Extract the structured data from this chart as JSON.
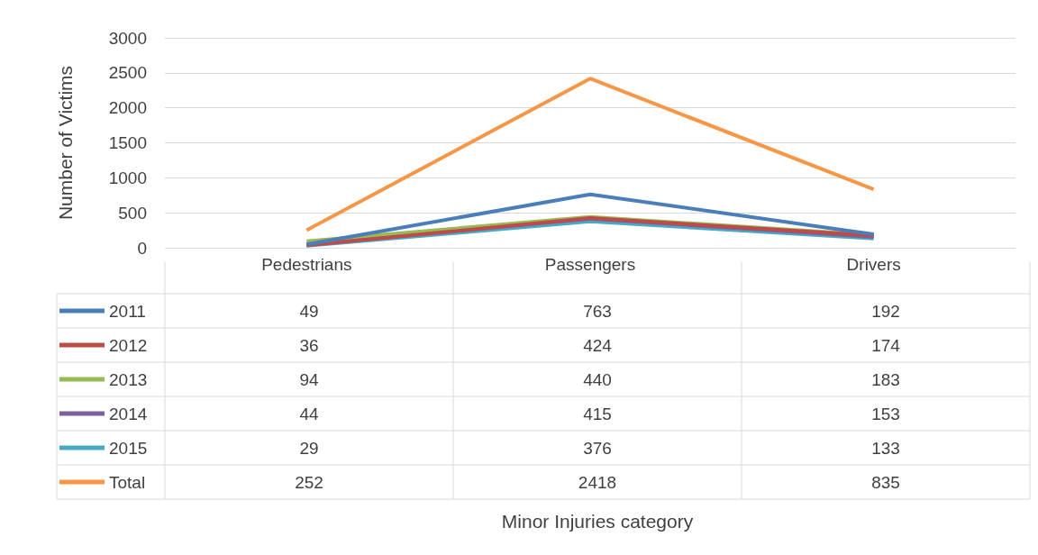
{
  "chart_data": {
    "type": "line",
    "annotations": [
      "Minor Injuries category"
    ],
    "ylabel": "Number of Victims",
    "categories": [
      "Pedestrians",
      "Passengers",
      "Drivers"
    ],
    "ylim": [
      0,
      3000
    ],
    "yticks": [
      0,
      500,
      1000,
      1500,
      2000,
      2500,
      3000
    ],
    "grid": "y",
    "legend": "bottom left",
    "data_labels": true,
    "marker": "none",
    "series": [
      {
        "name": "2011",
        "color": "#4a7ebb",
        "values": [
          49,
          763,
          192
        ]
      },
      {
        "name": "2012",
        "color": "#be4b48",
        "values": [
          36,
          424,
          174
        ]
      },
      {
        "name": "2013",
        "color": "#98b954",
        "values": [
          94,
          440,
          183
        ]
      },
      {
        "name": "2014",
        "color": "#7d60a0",
        "values": [
          44,
          415,
          153
        ]
      },
      {
        "name": "2015",
        "color": "#46aac5",
        "values": [
          29,
          376,
          133
        ]
      },
      {
        "name": "Total",
        "color": "#f79646",
        "values": [
          252,
          2418,
          835
        ]
      }
    ]
  }
}
